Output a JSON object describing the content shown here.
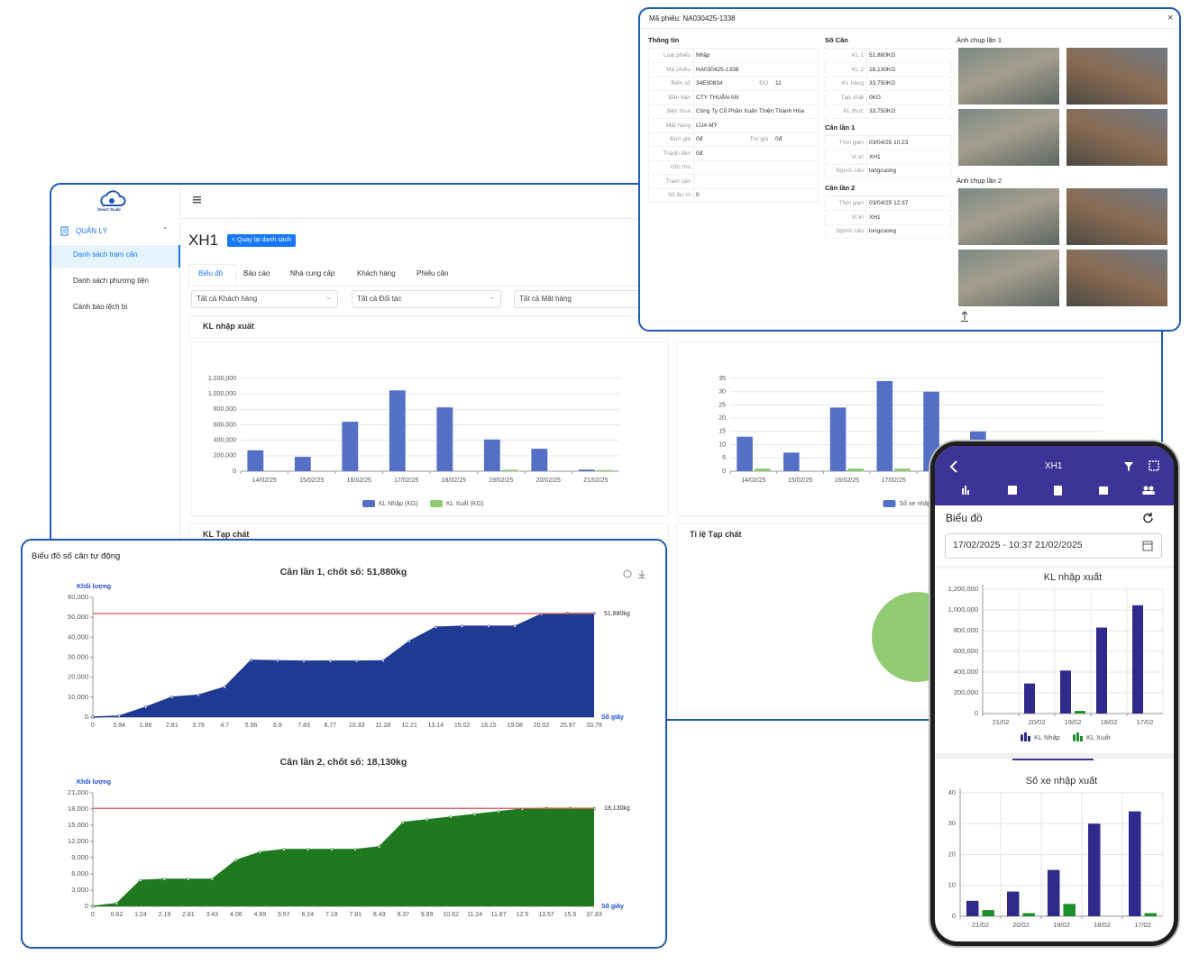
{
  "sidebar": {
    "logo": "Smart Scale",
    "section": "QUẢN LÝ",
    "items": [
      "Danh sách trạm cân",
      "Danh sách phương tiện",
      "Cảnh báo lệch bì"
    ]
  },
  "header": {
    "title": "XH1",
    "back_button": "< Quay lại danh sách"
  },
  "tabs": [
    "Biểu đồ",
    "Báo cáo",
    "Nhà cung cấp",
    "Khách hàng",
    "Phiếu cân"
  ],
  "filters": [
    "Tất cả Khách hàng",
    "Tất cả Đối tác",
    "Tất cả Mặt hàng"
  ],
  "panels": {
    "kl_tap_chat": "KL Tạp chất",
    "ti_le_tap_chat": "Tỉ lệ Tạp chất"
  },
  "chart_data": [
    {
      "type": "bar",
      "title": "KL nhập xuất",
      "categories": [
        "14/02/25",
        "15/02/25",
        "16/02/25",
        "17/02/25",
        "18/02/25",
        "19/02/25",
        "20/02/25",
        "21/02/25"
      ],
      "series": [
        {
          "name": "KL Nhập (KG)",
          "color": "#5470c6",
          "values": [
            270000,
            185000,
            640000,
            1045000,
            825000,
            410000,
            290000,
            20000
          ]
        },
        {
          "name": "KL Xuất (KG)",
          "color": "#91cc75",
          "values": [
            0,
            0,
            0,
            0,
            0,
            20000,
            0,
            15000
          ]
        }
      ],
      "ylim": [
        0,
        1200000
      ],
      "yticks": [
        0,
        {
          "value": 200000,
          "label": "200,000"
        },
        {
          "value": 400000,
          "label": "400,000"
        },
        {
          "value": 600000,
          "label": "600,000"
        },
        {
          "value": 800000,
          "label": "800,000"
        },
        {
          "value": 1000000,
          "label": "1,000,000"
        },
        {
          "value": 1200000,
          "label": "1,200,000"
        }
      ],
      "grid": true,
      "legend": "bottom"
    },
    {
      "type": "bar",
      "categories": [
        "14/02/25",
        "15/02/25",
        "16/02/25",
        "17/02/25",
        "18",
        null,
        null,
        null
      ],
      "series": [
        {
          "name": "Số xe nhập",
          "color": "#5470c6",
          "values": [
            13,
            7,
            24,
            34,
            30,
            15,
            null,
            null
          ]
        },
        {
          "color": "#91cc75",
          "values": [
            1,
            0,
            1,
            1,
            0,
            null,
            null,
            null
          ]
        }
      ],
      "ylim": [
        0,
        35
      ],
      "yticks": [
        0,
        5,
        10,
        15,
        20,
        25,
        30,
        35
      ],
      "grid": true,
      "legend": "bottom"
    },
    {
      "type": "area",
      "title": "Cân lần 1, chốt số: 51,880kg",
      "y_label": "Khối lượng",
      "x_label": "Số giây",
      "categories": [
        "0",
        "0.94",
        "1.88",
        "2.81",
        "3.76",
        "4.7",
        "5.96",
        "6.9",
        "7.83",
        "8.77",
        "10.33",
        "11.28",
        "12.21",
        "13.14",
        "15.02",
        "18.15",
        "19.08",
        "20.02",
        "25.97",
        "33.79"
      ],
      "values": [
        0,
        500,
        5000,
        10000,
        11000,
        15000,
        28500,
        28200,
        28000,
        28000,
        28000,
        28200,
        38000,
        45000,
        45500,
        45500,
        45500,
        51500,
        51880,
        51880
      ],
      "color": "#1f3a93",
      "threshold": 51880,
      "threshold_label": "51,880kg",
      "threshold_color": "#d9534f",
      "ylim": [
        0,
        60000
      ],
      "yticks": [
        0,
        {
          "value": 10000,
          "label": "10,000"
        },
        {
          "value": 20000,
          "label": "20,000"
        },
        {
          "value": 30000,
          "label": "30,000"
        },
        {
          "value": 40000,
          "label": "40,000"
        },
        {
          "value": 50000,
          "label": "50,000"
        },
        {
          "value": 60000,
          "label": "60,000"
        }
      ]
    },
    {
      "type": "area",
      "title": "Cân lần 2, chốt số: 18,130kg",
      "y_label": "Khối lượng",
      "x_label": "Số giây",
      "categories": [
        "0",
        "0.62",
        "1.24",
        "2.19",
        "2.81",
        "3.43",
        "4.06",
        "4.69",
        "5.57",
        "6.24",
        "7.19",
        "7.81",
        "8.43",
        "9.37",
        "9.99",
        "10.62",
        "11.24",
        "11.87",
        "12.5",
        "13.57",
        "15.5",
        "37.83"
      ],
      "values": [
        0,
        500,
        4800,
        5000,
        5000,
        5000,
        8500,
        10000,
        10500,
        10500,
        10500,
        10500,
        11000,
        15500,
        16000,
        16500,
        17000,
        17500,
        18000,
        18130,
        18130,
        18130
      ],
      "color": "#1f7a1f",
      "threshold": 18130,
      "threshold_label": "18,130kg",
      "threshold_color": "#d9534f",
      "ylim": [
        0,
        21000
      ],
      "yticks": [
        0,
        {
          "value": 3000,
          "label": "3,000"
        },
        {
          "value": 6000,
          "label": "6,000"
        },
        {
          "value": 9000,
          "label": "9,000"
        },
        {
          "value": 12000,
          "label": "12,000"
        },
        {
          "value": 15000,
          "label": "15,000"
        },
        {
          "value": 18000,
          "label": "18,000"
        },
        {
          "value": 21000,
          "label": "21,000"
        }
      ]
    },
    {
      "type": "bar",
      "title": "KL nhập xuất",
      "categories": [
        "21/02",
        "20/02",
        "19/02",
        "18/02",
        "17/02"
      ],
      "series": [
        {
          "name": "KL Nhập",
          "color": "#2f2b8c",
          "values": [
            0,
            290000,
            415000,
            830000,
            1045000
          ]
        },
        {
          "name": "KL Xuất",
          "color": "#1a8f2a",
          "values": [
            0,
            0,
            25000,
            0,
            0
          ]
        }
      ],
      "ylim": [
        0,
        1200000
      ],
      "yticks": [
        0,
        {
          "value": 200000,
          "label": "200,000"
        },
        {
          "value": 400000,
          "label": "400,000"
        },
        {
          "value": 600000,
          "label": "600,000"
        },
        {
          "value": 800000,
          "label": "800,000"
        },
        {
          "value": 1000000,
          "label": "1,000,000"
        },
        {
          "value": 1200000,
          "label": "1,200,000"
        }
      ],
      "grid": true,
      "legend": "bottom"
    },
    {
      "type": "bar",
      "title": "Số xe nhập xuất",
      "categories": [
        "21/02",
        "20/02",
        "19/02",
        "18/02",
        "17/02"
      ],
      "series": [
        {
          "color": "#2f2b8c",
          "values": [
            5,
            8,
            15,
            30,
            34
          ]
        },
        {
          "color": "#1a8f2a",
          "values": [
            2,
            1,
            4,
            0,
            1
          ]
        }
      ],
      "ylim": [
        0,
        40
      ],
      "yticks": [
        0,
        10,
        20,
        30,
        40
      ],
      "grid": true
    }
  ],
  "modal": {
    "title": "Mã phiếu: NA030425-1338",
    "close": "×",
    "sections": [
      {
        "title": "Thông tin",
        "rows": [
          [
            "Loại phiếu",
            "Nhập"
          ],
          [
            "Mã phiếu",
            "NA030425-1338"
          ],
          [
            "Biển số",
            "34E00834",
            "ĐO",
            "11"
          ],
          [
            "Bên bán",
            "CTY THUẬN AN"
          ],
          [
            "Bên mua",
            "Công Ty Cổ Phần Xuân Thiện Thanh Hóa"
          ],
          [
            "Mặt hàng",
            "LÚA MỲ"
          ],
          [
            "Đơn giá",
            "0đ",
            "Trợ giá",
            "0đ"
          ],
          [
            "Thành tiền",
            "0đ"
          ],
          [
            "Ghi chú"
          ],
          [
            "Trạm cân"
          ],
          [
            "Số lần in",
            "0"
          ]
        ]
      },
      {
        "title": "Số Cân",
        "rows": [
          [
            "KL 1",
            "51,880KG"
          ],
          [
            "KL 2",
            "18,130KG"
          ],
          [
            "KL hàng",
            "33,750KG"
          ],
          [
            "Tạp chất",
            "0KG"
          ],
          [
            "KL thực",
            "33,750KG"
          ]
        ]
      },
      {
        "title": "Cân lần 1",
        "rows": [
          [
            "Thời gian",
            "03/04/25 10:23"
          ],
          [
            "Vị trí",
            "XH1"
          ],
          [
            "Người cân",
            "longcuong"
          ]
        ]
      },
      {
        "title": "Cân lần 2",
        "rows": [
          [
            "Thời gian",
            "03/04/25 12:37"
          ],
          [
            "Vị trí",
            "XH1"
          ],
          [
            "Người cân",
            "longcuong"
          ]
        ]
      }
    ],
    "photos": [
      "Ảnh chụp lần 1",
      "Ảnh chụp lần 2"
    ]
  },
  "auto_panel": {
    "title": "Biểu đồ số cân tự động"
  },
  "phone": {
    "title": "XH1",
    "section": "Biểu đồ",
    "date_range": "17/02/2025 - 10:37 21/02/2025"
  }
}
